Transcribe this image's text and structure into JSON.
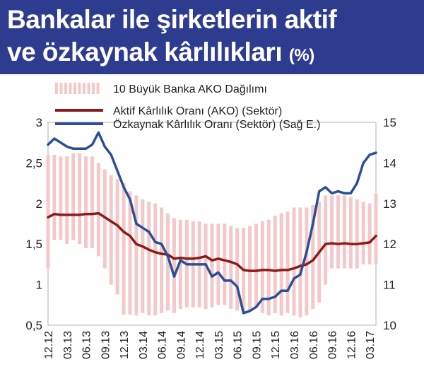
{
  "title": {
    "line1": "Bankalar ile şirketlerin aktif",
    "line2": "ve özkaynak kârlılıkları",
    "unit": "(%)"
  },
  "chart_data": {
    "type": "bar+line",
    "title": "Bankalar ile şirketlerin aktif ve özkaynak kârlılıkları (%)",
    "left_axis": {
      "range": [
        0.5,
        3
      ],
      "ticks": [
        "0,5",
        "1",
        "1,5",
        "2",
        "2,5",
        "3"
      ]
    },
    "right_axis": {
      "range": [
        10,
        15
      ],
      "ticks": [
        "10",
        "11",
        "12",
        "13",
        "14",
        "15"
      ]
    },
    "x_tick_labels": [
      "12.12",
      "03.13",
      "06.13",
      "09.13",
      "12.13",
      "03.14",
      "06.14",
      "09.14",
      "12.14",
      "03.15",
      "06.15",
      "09.15",
      "12.15",
      "03.16",
      "06.16",
      "09.16",
      "12.16",
      "03.17"
    ],
    "x_start": "2012-12",
    "legend": [
      {
        "key": "range",
        "label": "10 Büyük Banka AKO Dağılımı"
      },
      {
        "key": "ako",
        "label": "Aktif Kârlılık Oranı (AKO) (Sektör)"
      },
      {
        "key": "oko",
        "label": "Özkaynak Kârlılık Oranı (Sektör) (Sağ E.)"
      }
    ],
    "colors": {
      "range": "#f4c8c8",
      "ako": "#8b1a1a",
      "oko": "#2b4f96"
    },
    "range_bars": [
      [
        1.2,
        2.6
      ],
      [
        1.55,
        2.6
      ],
      [
        1.55,
        2.58
      ],
      [
        1.5,
        2.58
      ],
      [
        1.55,
        2.62
      ],
      [
        1.5,
        2.62
      ],
      [
        1.45,
        2.58
      ],
      [
        1.45,
        2.58
      ],
      [
        1.35,
        2.5
      ],
      [
        1.2,
        2.42
      ],
      [
        1.0,
        2.35
      ],
      [
        0.88,
        2.3
      ],
      [
        0.63,
        2.25
      ],
      [
        0.63,
        2.15
      ],
      [
        0.62,
        2.1
      ],
      [
        0.65,
        2.05
      ],
      [
        0.62,
        2.02
      ],
      [
        0.62,
        2.0
      ],
      [
        0.65,
        1.95
      ],
      [
        0.68,
        1.88
      ],
      [
        0.65,
        1.82
      ],
      [
        0.7,
        1.8
      ],
      [
        0.72,
        1.8
      ],
      [
        0.72,
        1.78
      ],
      [
        0.72,
        1.78
      ],
      [
        0.7,
        1.75
      ],
      [
        0.72,
        1.75
      ],
      [
        0.75,
        1.75
      ],
      [
        0.75,
        1.75
      ],
      [
        0.7,
        1.72
      ],
      [
        0.68,
        1.7
      ],
      [
        0.65,
        1.7
      ],
      [
        0.68,
        1.72
      ],
      [
        0.72,
        1.75
      ],
      [
        0.65,
        1.78
      ],
      [
        0.62,
        1.8
      ],
      [
        0.65,
        1.85
      ],
      [
        0.62,
        1.88
      ],
      [
        0.65,
        1.9
      ],
      [
        0.62,
        1.95
      ],
      [
        0.6,
        1.95
      ],
      [
        0.62,
        1.95
      ],
      [
        0.7,
        1.98
      ],
      [
        0.78,
        2.02
      ],
      [
        1.0,
        2.1
      ],
      [
        1.2,
        2.1
      ],
      [
        1.2,
        2.1
      ],
      [
        1.2,
        2.1
      ],
      [
        1.2,
        2.08
      ],
      [
        1.2,
        2.05
      ],
      [
        1.25,
        2.02
      ],
      [
        1.25,
        2.0
      ],
      [
        1.25,
        2.12
      ]
    ],
    "ako_values": [
      1.83,
      1.87,
      1.86,
      1.86,
      1.86,
      1.86,
      1.87,
      1.87,
      1.88,
      1.83,
      1.78,
      1.73,
      1.65,
      1.6,
      1.5,
      1.47,
      1.43,
      1.4,
      1.38,
      1.37,
      1.32,
      1.33,
      1.32,
      1.32,
      1.33,
      1.35,
      1.3,
      1.32,
      1.3,
      1.28,
      1.25,
      1.18,
      1.17,
      1.17,
      1.18,
      1.18,
      1.17,
      1.18,
      1.18,
      1.2,
      1.23,
      1.25,
      1.3,
      1.4,
      1.5,
      1.51,
      1.5,
      1.51,
      1.5,
      1.5,
      1.51,
      1.52,
      1.6
    ],
    "oko_values": [
      14.45,
      14.6,
      14.5,
      14.4,
      14.35,
      14.35,
      14.35,
      14.45,
      14.75,
      14.4,
      14.2,
      13.8,
      13.4,
      13.1,
      12.5,
      12.4,
      12.3,
      12.05,
      12.0,
      11.7,
      11.2,
      11.6,
      11.5,
      11.5,
      11.5,
      11.5,
      11.2,
      11.3,
      11.1,
      11.1,
      10.95,
      10.3,
      10.35,
      10.45,
      10.65,
      10.65,
      10.7,
      10.85,
      10.85,
      11.15,
      11.25,
      11.8,
      12.5,
      13.3,
      13.4,
      13.25,
      13.3,
      13.25,
      13.25,
      13.5,
      14.0,
      14.2,
      14.25
    ]
  }
}
